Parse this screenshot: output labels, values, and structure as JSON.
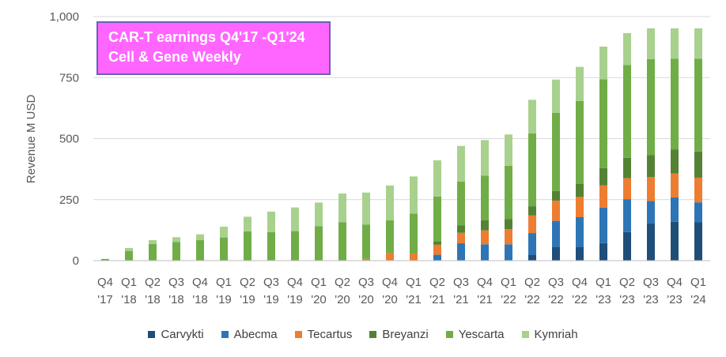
{
  "chart_data": {
    "type": "bar",
    "stacked": true,
    "title": "CAR-T earnings Q4'17 -Q1'24",
    "subtitle": "Cell & Gene Weekly",
    "ylabel": "Revenue M USD",
    "ylim": [
      0,
      1000
    ],
    "yticks": [
      "0",
      "250",
      "500",
      "750",
      "1,000"
    ],
    "ytick_values": [
      0,
      250,
      500,
      750,
      1000
    ],
    "grid": true,
    "legend_position": "bottom",
    "categories": [
      [
        "Q4",
        "'17"
      ],
      [
        "Q1",
        "'18"
      ],
      [
        "Q2",
        "'18"
      ],
      [
        "Q3",
        "'18"
      ],
      [
        "Q4",
        "'18"
      ],
      [
        "Q1",
        "'19"
      ],
      [
        "Q2",
        "'19"
      ],
      [
        "Q3",
        "'19"
      ],
      [
        "Q4",
        "'19"
      ],
      [
        "Q1",
        "'20"
      ],
      [
        "Q2",
        "'20"
      ],
      [
        "Q3",
        "'20"
      ],
      [
        "Q4",
        "'20"
      ],
      [
        "Q1",
        "'21"
      ],
      [
        "Q2",
        "'21"
      ],
      [
        "Q3",
        "'21"
      ],
      [
        "Q4",
        "'21"
      ],
      [
        "Q1",
        "'22"
      ],
      [
        "Q2",
        "'22"
      ],
      [
        "Q3",
        "'22"
      ],
      [
        "Q4",
        "'22"
      ],
      [
        "Q1",
        "'23"
      ],
      [
        "Q2",
        "'23"
      ],
      [
        "Q3",
        "'23"
      ],
      [
        "Q4",
        "'23"
      ],
      [
        "Q1",
        "'24"
      ]
    ],
    "series": [
      {
        "name": "Carvykti",
        "color": "#1f4e79",
        "values": [
          0,
          0,
          0,
          0,
          0,
          0,
          0,
          0,
          0,
          0,
          0,
          0,
          0,
          0,
          0,
          0,
          0,
          0,
          24,
          55,
          55,
          72,
          117,
          152,
          159,
          157
        ]
      },
      {
        "name": "Abecma",
        "color": "#2e75b6",
        "values": [
          0,
          0,
          0,
          0,
          0,
          0,
          0,
          0,
          0,
          0,
          0,
          0,
          0,
          0,
          24,
          71,
          67,
          67,
          89,
          108,
          123,
          145,
          135,
          92,
          100,
          82
        ]
      },
      {
        "name": "Tecartus",
        "color": "#ed7d31",
        "values": [
          0,
          0,
          0,
          0,
          0,
          0,
          0,
          0,
          0,
          0,
          0,
          7,
          32,
          29,
          41,
          43,
          57,
          62,
          72,
          83,
          83,
          91,
          86,
          98,
          98,
          101
        ]
      },
      {
        "name": "Breyanzi",
        "color": "#548235",
        "values": [
          0,
          0,
          0,
          0,
          0,
          0,
          0,
          0,
          0,
          0,
          0,
          0,
          0,
          0,
          14,
          30,
          41,
          42,
          38,
          39,
          53,
          71,
          83,
          90,
          99,
          107
        ]
      },
      {
        "name": "Yescarta",
        "color": "#70ad47",
        "values": [
          7,
          40,
          68,
          76,
          84,
          95,
          120,
          117,
          121,
          141,
          157,
          141,
          133,
          164,
          184,
          180,
          183,
          218,
          298,
          321,
          340,
          364,
          381,
          394,
          371,
          380
        ]
      },
      {
        "name": "Kymriah",
        "color": "#a9d18e",
        "values": [
          0,
          12,
          16,
          20,
          24,
          44,
          60,
          84,
          97,
          97,
          118,
          131,
          143,
          152,
          148,
          146,
          146,
          128,
          138,
          136,
          140,
          134,
          130,
          126,
          125,
          125
        ]
      }
    ]
  }
}
